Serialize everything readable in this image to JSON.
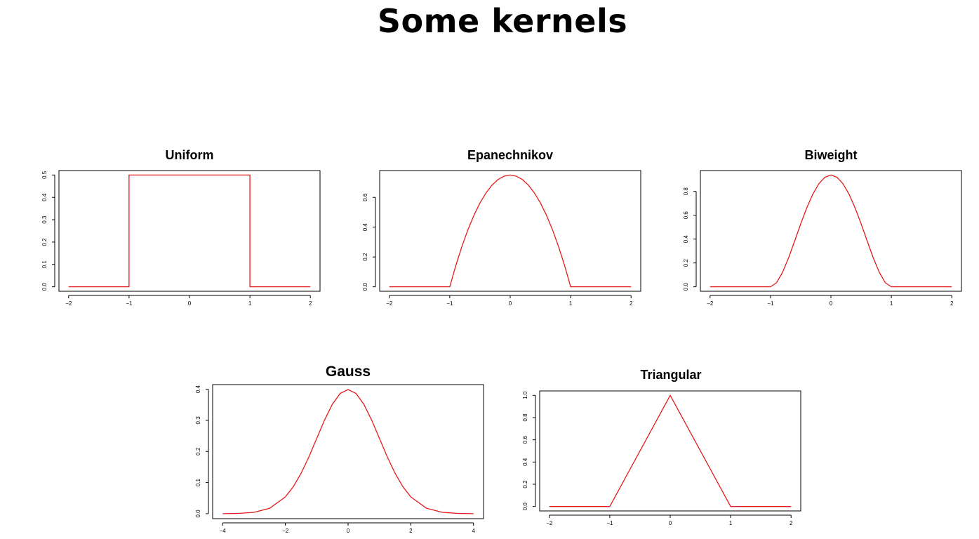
{
  "title": "Some kernels",
  "chart_data": [
    {
      "type": "line",
      "title": "Uniform",
      "xlim": [
        -2,
        2
      ],
      "ylim": [
        0,
        0.5
      ],
      "x_ticks": [
        -2,
        -1,
        0,
        1,
        2
      ],
      "x_tick_labels": [
        "−2",
        "−1",
        "0",
        "1",
        "2"
      ],
      "y_ticks": [
        0,
        0.1,
        0.2,
        0.3,
        0.4,
        0.5
      ],
      "y_tick_labels": [
        "0.0",
        "0.1",
        "0.2",
        "0.3",
        "0.4",
        "0.5"
      ],
      "series": [
        {
          "color": "#e41a1c",
          "x": [
            -2,
            -1,
            -1,
            1,
            1,
            2
          ],
          "y": [
            0,
            0,
            0.5,
            0.5,
            0,
            0
          ]
        }
      ]
    },
    {
      "type": "line",
      "title": "Epanechnikov",
      "xlim": [
        -2,
        2
      ],
      "ylim": [
        0,
        0.75
      ],
      "x_ticks": [
        -2,
        -1,
        0,
        1,
        2
      ],
      "x_tick_labels": [
        "−2",
        "−1",
        "0",
        "1",
        "2"
      ],
      "y_ticks": [
        0,
        0.2,
        0.4,
        0.6
      ],
      "y_tick_labels": [
        "0.0",
        "0.2",
        "0.4",
        "0.6"
      ],
      "series": [
        {
          "color": "#e41a1c",
          "x": [
            -2,
            -1,
            -0.9,
            -0.8,
            -0.7,
            -0.6,
            -0.5,
            -0.4,
            -0.3,
            -0.2,
            -0.1,
            0,
            0.1,
            0.2,
            0.3,
            0.4,
            0.5,
            0.6,
            0.7,
            0.8,
            0.9,
            1,
            2
          ],
          "y": [
            0,
            0,
            0.1425,
            0.27,
            0.3825,
            0.48,
            0.5625,
            0.63,
            0.6825,
            0.72,
            0.7425,
            0.75,
            0.7425,
            0.72,
            0.6825,
            0.63,
            0.5625,
            0.48,
            0.3825,
            0.27,
            0.1425,
            0,
            0
          ]
        }
      ]
    },
    {
      "type": "line",
      "title": "Biweight",
      "xlim": [
        -2,
        2
      ],
      "ylim": [
        0,
        0.9375
      ],
      "x_ticks": [
        -2,
        -1,
        0,
        1,
        2
      ],
      "x_tick_labels": [
        "−2",
        "−1",
        "0",
        "1",
        "2"
      ],
      "y_ticks": [
        0,
        0.2,
        0.4,
        0.6,
        0.8
      ],
      "y_tick_labels": [
        "0.0",
        "0.2",
        "0.4",
        "0.6",
        "0.8"
      ],
      "series": [
        {
          "color": "#e41a1c",
          "x": [
            -2,
            -1,
            -0.9,
            -0.8,
            -0.7,
            -0.6,
            -0.5,
            -0.4,
            -0.3,
            -0.2,
            -0.1,
            0,
            0.1,
            0.2,
            0.3,
            0.4,
            0.5,
            0.6,
            0.7,
            0.8,
            0.9,
            1,
            2
          ],
          "y": [
            0,
            0,
            0.0338,
            0.1215,
            0.2438,
            0.384,
            0.5273,
            0.6615,
            0.7761,
            0.864,
            0.919,
            0.9375,
            0.919,
            0.864,
            0.7761,
            0.6615,
            0.5273,
            0.384,
            0.2438,
            0.1215,
            0.0338,
            0,
            0
          ]
        }
      ]
    },
    {
      "type": "line",
      "title": "Gauss",
      "xlim": [
        -4,
        4
      ],
      "ylim": [
        0,
        0.3989
      ],
      "x_ticks": [
        -4,
        -2,
        0,
        2,
        4
      ],
      "x_tick_labels": [
        "−4",
        "−2",
        "0",
        "2",
        "4"
      ],
      "y_ticks": [
        0,
        0.1,
        0.2,
        0.3,
        0.4
      ],
      "y_tick_labels": [
        "0.0",
        "0.1",
        "0.2",
        "0.3",
        "0.4"
      ],
      "series": [
        {
          "color": "#e41a1c",
          "x": [
            -4,
            -3.5,
            -3,
            -2.5,
            -2,
            -1.75,
            -1.5,
            -1.25,
            -1,
            -0.75,
            -0.5,
            -0.25,
            0,
            0.25,
            0.5,
            0.75,
            1,
            1.25,
            1.5,
            1.75,
            2,
            2.5,
            3,
            3.5,
            4
          ],
          "y": [
            0.0001,
            0.0009,
            0.0044,
            0.0175,
            0.054,
            0.0863,
            0.1295,
            0.1826,
            0.242,
            0.3011,
            0.3521,
            0.3867,
            0.3989,
            0.3867,
            0.3521,
            0.3011,
            0.242,
            0.1826,
            0.1295,
            0.0863,
            0.054,
            0.0175,
            0.0044,
            0.0009,
            0.0001
          ]
        }
      ]
    },
    {
      "type": "line",
      "title": "Triangular",
      "xlim": [
        -2,
        2
      ],
      "ylim": [
        0,
        1
      ],
      "x_ticks": [
        -2,
        -1,
        0,
        1,
        2
      ],
      "x_tick_labels": [
        "−2",
        "−1",
        "0",
        "1",
        "2"
      ],
      "y_ticks": [
        0,
        0.2,
        0.4,
        0.6,
        0.8,
        1
      ],
      "y_tick_labels": [
        "0.0",
        "0.2",
        "0.4",
        "0.6",
        "0.8",
        "1.0"
      ],
      "series": [
        {
          "color": "#e41a1c",
          "x": [
            -2,
            -1,
            0,
            1,
            2
          ],
          "y": [
            0,
            0,
            1,
            0,
            0
          ]
        }
      ]
    }
  ]
}
